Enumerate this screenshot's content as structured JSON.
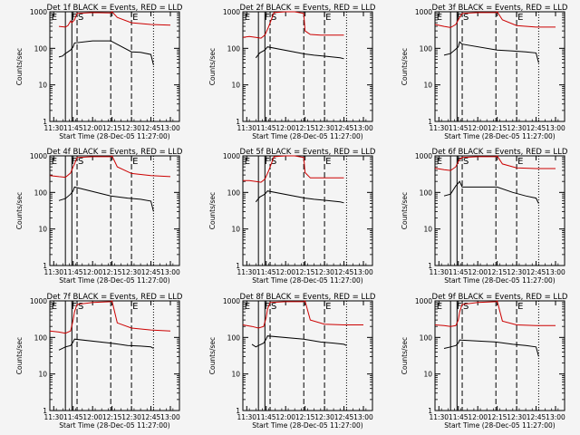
{
  "figure": {
    "background": "#f4f4f4",
    "colors": {
      "axes": "#000000",
      "events": "#000000",
      "lld": "#cc0000"
    }
  },
  "common": {
    "xlabel": "Start Time (28-Dec-05 11:27:00)",
    "ylabel": "Counts/sec",
    "xticks": [
      "11:30",
      "11:45",
      "12:00",
      "12:15",
      "12:30",
      "12:45",
      "13:00"
    ],
    "xtick_minutes": [
      3,
      18,
      33,
      48,
      63,
      78,
      93
    ],
    "xlim_minutes": [
      0,
      100
    ],
    "yticks": [
      "1",
      "10",
      "100",
      "1000"
    ],
    "yticks_values": [
      1,
      10,
      100,
      1000
    ],
    "ylim": [
      1,
      1000
    ],
    "yscale": "log",
    "marker_labels": [
      "E",
      "F",
      "S",
      "E"
    ],
    "marker_minutes": [
      0.5,
      16,
      21,
      63
    ],
    "solid_lines_minutes": [
      12,
      17
    ],
    "dashed_lines_minutes": [
      21,
      47,
      63
    ],
    "dotted_lines_minutes": [
      80
    ]
  },
  "chart_data": [
    {
      "type": "line",
      "title": "Det 1f BLACK = Events, RED = LLD",
      "series": [
        {
          "name": "BLACK = Events",
          "x": [
            7,
            10,
            11,
            12,
            16,
            18,
            19,
            33,
            47,
            63,
            70,
            78,
            80
          ],
          "y": [
            58,
            62,
            68,
            72,
            90,
            110,
            140,
            160,
            160,
            80,
            78,
            68,
            35
          ]
        },
        {
          "name": "RED = LLD",
          "x": [
            7,
            12,
            14,
            16,
            17,
            19,
            21,
            33,
            47,
            48,
            52,
            63,
            78,
            93
          ],
          "y": [
            400,
            380,
            420,
            560,
            500,
            600,
            900,
            950,
            930,
            1000,
            700,
            500,
            450,
            430
          ]
        }
      ]
    },
    {
      "type": "line",
      "title": "Det 2f BLACK = Events, RED = LLD",
      "series": [
        {
          "name": "BLACK = Events",
          "x": [
            10,
            13,
            17,
            19,
            48,
            55,
            65,
            75,
            78
          ],
          "y": [
            55,
            75,
            90,
            110,
            70,
            65,
            60,
            55,
            52
          ]
        },
        {
          "name": "RED = LLD",
          "x": [
            0,
            5,
            10,
            14,
            17,
            20,
            24,
            33,
            40,
            47,
            48,
            52,
            60,
            70,
            78
          ],
          "y": [
            200,
            210,
            200,
            190,
            230,
            400,
            950,
            1000,
            1000,
            900,
            300,
            240,
            230,
            230,
            230
          ]
        }
      ]
    },
    {
      "type": "line",
      "title": "Det 3f BLACK = Events, RED = LLD",
      "series": [
        {
          "name": "BLACK = Events",
          "x": [
            7,
            12,
            16,
            18,
            19,
            21,
            48,
            60,
            70,
            78,
            80
          ],
          "y": [
            65,
            72,
            95,
            110,
            150,
            130,
            90,
            85,
            80,
            75,
            40
          ]
        },
        {
          "name": "RED = LLD",
          "x": [
            0,
            7,
            12,
            16,
            18,
            19,
            21,
            33,
            47,
            48,
            52,
            63,
            78,
            93
          ],
          "y": [
            450,
            400,
            370,
            450,
            600,
            700,
            900,
            950,
            950,
            1000,
            600,
            420,
            380,
            380
          ]
        }
      ]
    },
    {
      "type": "line",
      "title": "Det 4f BLACK = Events, RED = LLD",
      "series": [
        {
          "name": "BLACK = Events",
          "x": [
            7,
            12,
            16,
            18,
            19,
            47,
            60,
            70,
            78,
            80
          ],
          "y": [
            60,
            68,
            90,
            110,
            140,
            80,
            70,
            65,
            58,
            30
          ]
        },
        {
          "name": "RED = LLD",
          "x": [
            0,
            7,
            12,
            16,
            18,
            19,
            21,
            33,
            47,
            48,
            52,
            63,
            78,
            93
          ],
          "y": [
            290,
            270,
            260,
            340,
            500,
            600,
            900,
            950,
            950,
            1000,
            500,
            330,
            290,
            270
          ]
        }
      ]
    },
    {
      "type": "line",
      "title": "Det 5f BLACK = Events, RED = LLD",
      "series": [
        {
          "name": "BLACK = Events",
          "x": [
            10,
            13,
            17,
            19,
            48,
            55,
            65,
            75,
            78
          ],
          "y": [
            55,
            75,
            90,
            110,
            70,
            65,
            60,
            55,
            52
          ]
        },
        {
          "name": "RED = LLD",
          "x": [
            0,
            5,
            10,
            14,
            17,
            20,
            24,
            33,
            40,
            47,
            48,
            52,
            60,
            70,
            78
          ],
          "y": [
            210,
            210,
            200,
            190,
            230,
            400,
            950,
            1000,
            1000,
            900,
            350,
            250,
            250,
            250,
            250
          ]
        }
      ]
    },
    {
      "type": "line",
      "title": "Det 6f BLACK = Events, RED = LLD",
      "series": [
        {
          "name": "BLACK = Events",
          "x": [
            7,
            12,
            16,
            18,
            19,
            21,
            48,
            60,
            70,
            78,
            80
          ],
          "y": [
            80,
            90,
            150,
            180,
            200,
            140,
            140,
            100,
            80,
            70,
            50
          ]
        },
        {
          "name": "RED = LLD",
          "x": [
            0,
            7,
            12,
            16,
            18,
            19,
            21,
            33,
            47,
            48,
            52,
            63,
            78,
            93
          ],
          "y": [
            460,
            420,
            400,
            500,
            700,
            800,
            900,
            950,
            950,
            1000,
            600,
            470,
            450,
            450
          ]
        }
      ]
    },
    {
      "type": "line",
      "title": "Det 7f BLACK = Events, RED = LLD",
      "series": [
        {
          "name": "BLACK = Events",
          "x": [
            7,
            12,
            16,
            18,
            19,
            47,
            60,
            70,
            78,
            80
          ],
          "y": [
            45,
            55,
            60,
            75,
            90,
            70,
            60,
            58,
            55,
            50
          ]
        },
        {
          "name": "RED = LLD",
          "x": [
            0,
            7,
            12,
            16,
            18,
            19,
            21,
            33,
            47,
            48,
            52,
            63,
            78,
            93
          ],
          "y": [
            150,
            140,
            130,
            150,
            300,
            500,
            800,
            900,
            950,
            1000,
            250,
            180,
            160,
            150
          ]
        }
      ]
    },
    {
      "type": "line",
      "title": "Det 8f BLACK = Events, RED = LLD",
      "series": [
        {
          "name": "BLACK = Events",
          "x": [
            7,
            10,
            12,
            16,
            18,
            19,
            47,
            60,
            70,
            78,
            80
          ],
          "y": [
            65,
            55,
            60,
            70,
            90,
            110,
            90,
            75,
            70,
            65,
            60
          ]
        },
        {
          "name": "RED = LLD",
          "x": [
            0,
            7,
            12,
            16,
            18,
            19,
            21,
            33,
            47,
            48,
            52,
            63,
            78,
            93
          ],
          "y": [
            220,
            200,
            180,
            200,
            350,
            600,
            900,
            950,
            950,
            1000,
            300,
            230,
            220,
            220
          ]
        }
      ]
    },
    {
      "type": "line",
      "title": "Det 9f BLACK = Events, RED = LLD",
      "series": [
        {
          "name": "BLACK = Events",
          "x": [
            7,
            12,
            16,
            18,
            19,
            47,
            60,
            70,
            78,
            80
          ],
          "y": [
            50,
            55,
            60,
            70,
            85,
            75,
            65,
            60,
            55,
            30
          ]
        },
        {
          "name": "RED = LLD",
          "x": [
            0,
            7,
            12,
            16,
            18,
            19,
            21,
            33,
            47,
            48,
            52,
            63,
            78,
            93
          ],
          "y": [
            220,
            210,
            200,
            210,
            300,
            500,
            800,
            900,
            950,
            1000,
            280,
            220,
            210,
            210
          ]
        }
      ]
    }
  ]
}
